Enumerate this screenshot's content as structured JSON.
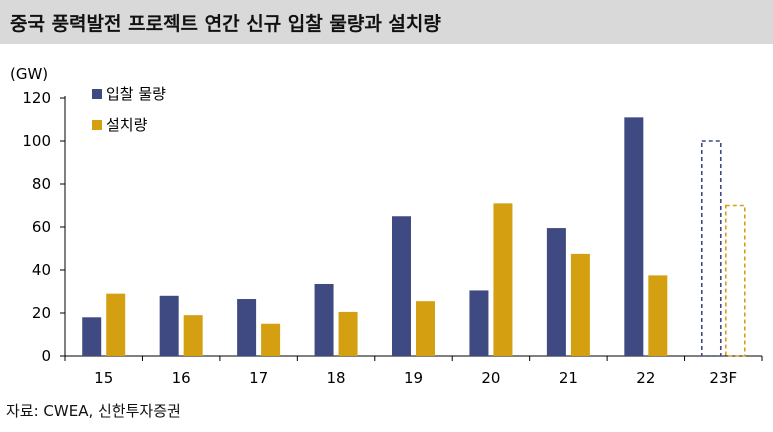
{
  "title": "중국 풍력발전 프로젝트 연간 신규 입찰 물량과 설치량",
  "source": "자료: CWEA, 신한투자증권",
  "colors": {
    "bid": "#3f4a83",
    "installed": "#d4a012",
    "axis": "#000000",
    "title_bg": "#d9d9d9"
  },
  "chart_data": {
    "type": "bar",
    "title": "중국 풍력발전 프로젝트 연간 신규 입찰 물량과 설치량",
    "unit_label": "(GW)",
    "xlabel": "",
    "ylabel": "(GW)",
    "ylim": [
      0,
      120
    ],
    "yticks": [
      0,
      20,
      40,
      60,
      80,
      100,
      120
    ],
    "categories": [
      "15",
      "16",
      "17",
      "18",
      "19",
      "20",
      "21",
      "22",
      "23F"
    ],
    "series": [
      {
        "name": "입찰 물량",
        "values": [
          18,
          28,
          26.5,
          33.5,
          65,
          30.5,
          59.5,
          111,
          100
        ],
        "forecast_last": true
      },
      {
        "name": "설치량",
        "values": [
          29,
          19,
          15,
          20.5,
          25.5,
          71,
          47.5,
          37.5,
          70
        ],
        "forecast_last": true
      }
    ],
    "legend_position": "top-left",
    "grid": false
  }
}
